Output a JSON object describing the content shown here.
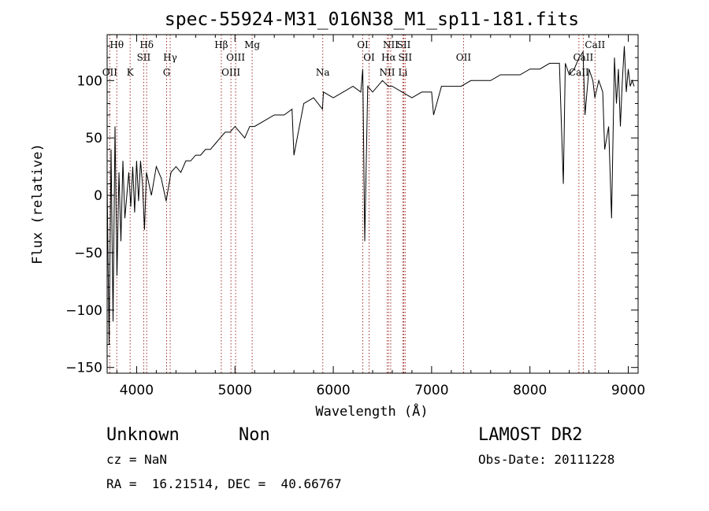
{
  "chart_data": {
    "type": "line",
    "title": "spec-55924-M31_016N38_M1_sp11-181.fits",
    "xlabel": "Wavelength (Å)",
    "ylabel": "Flux (relative)",
    "xlim": [
      3700,
      9100
    ],
    "ylim": [
      -155,
      140
    ],
    "x_ticks": [
      4000,
      5000,
      6000,
      7000,
      8000,
      9000
    ],
    "y_ticks": [
      -150,
      -100,
      -50,
      0,
      50,
      100
    ],
    "x_tick_labels": [
      "4000",
      "5000",
      "6000",
      "7000",
      "8000",
      "9000"
    ],
    "y_tick_labels": [
      "−150",
      "−100",
      "−50",
      "0",
      "50",
      "100"
    ],
    "grid": false,
    "series": [
      {
        "x": [
          3700,
          3720,
          3740,
          3760,
          3780,
          3800,
          3820,
          3840,
          3860,
          3880,
          3900,
          3920,
          3940,
          3960,
          3980,
          4000,
          4020,
          4040,
          4060,
          4080,
          4100,
          4150,
          4200,
          4250,
          4300,
          4350,
          4400,
          4450,
          4500,
          4550,
          4600,
          4650,
          4700,
          4750,
          4800,
          4850,
          4900,
          4950,
          5000,
          5050,
          5100,
          5150,
          5200,
          5300,
          5400,
          5500,
          5580,
          5600,
          5700,
          5800,
          5890,
          5900,
          6000,
          6100,
          6200,
          6280,
          6300,
          6320,
          6350,
          6400,
          6500,
          6560,
          6600,
          6700,
          6800,
          6900,
          7000,
          7020,
          7100,
          7200,
          7300,
          7400,
          7500,
          7600,
          7700,
          7800,
          7900,
          8000,
          8100,
          8200,
          8300,
          8340,
          8360,
          8400,
          8450,
          8500,
          8540,
          8560,
          8600,
          8640,
          8660,
          8700,
          8740,
          8760,
          8800,
          8830,
          8860,
          8880,
          8900,
          8920,
          8940,
          8960,
          8980,
          9000,
          9020,
          9040,
          9060
        ],
        "y": [
          10,
          -130,
          40,
          -110,
          60,
          -70,
          20,
          -40,
          30,
          -20,
          0,
          20,
          -10,
          25,
          -15,
          30,
          -5,
          30,
          10,
          -30,
          20,
          0,
          25,
          15,
          -5,
          20,
          25,
          20,
          30,
          30,
          35,
          35,
          40,
          40,
          45,
          50,
          55,
          55,
          60,
          55,
          50,
          60,
          60,
          65,
          70,
          70,
          75,
          35,
          80,
          85,
          75,
          90,
          85,
          90,
          95,
          90,
          110,
          -40,
          95,
          90,
          100,
          95,
          95,
          90,
          85,
          90,
          90,
          70,
          95,
          95,
          95,
          100,
          100,
          100,
          105,
          105,
          105,
          110,
          110,
          115,
          115,
          10,
          115,
          105,
          110,
          120,
          125,
          70,
          110,
          100,
          85,
          100,
          90,
          40,
          60,
          -20,
          120,
          80,
          110,
          60,
          100,
          130,
          90,
          110,
          95,
          100,
          95
        ]
      }
    ],
    "lines": [
      {
        "label": "Hθ",
        "x": 3798,
        "row": 1
      },
      {
        "label": "OII",
        "x": 3727,
        "row": 3
      },
      {
        "label": "K",
        "x": 3934,
        "row": 3
      },
      {
        "label": "Hδ",
        "x": 4102,
        "row": 1
      },
      {
        "label": "SII",
        "x": 4072,
        "row": 2
      },
      {
        "label": "Hγ",
        "x": 4341,
        "row": 2
      },
      {
        "label": "G",
        "x": 4305,
        "row": 3
      },
      {
        "label": "Hβ",
        "x": 4861,
        "row": 1
      },
      {
        "label": "OIII",
        "x": 5007,
        "row": 2
      },
      {
        "label": "OIII",
        "x": 4959,
        "row": 3
      },
      {
        "label": "Mg",
        "x": 5175,
        "row": 1
      },
      {
        "label": "Na",
        "x": 5893,
        "row": 3
      },
      {
        "label": "OI",
        "x": 6300,
        "row": 1
      },
      {
        "label": "OI",
        "x": 6364,
        "row": 2
      },
      {
        "label": "NII",
        "x": 6584,
        "row": 1
      },
      {
        "label": "Hα",
        "x": 6563,
        "row": 2
      },
      {
        "label": "NII",
        "x": 6548,
        "row": 3
      },
      {
        "label": "SII",
        "x": 6717,
        "row": 1
      },
      {
        "label": "SII",
        "x": 6731,
        "row": 2
      },
      {
        "label": "Li",
        "x": 6708,
        "row": 3
      },
      {
        "label": "OII",
        "x": 7325,
        "row": 2
      },
      {
        "label": "CaII",
        "x": 8662,
        "row": 1
      },
      {
        "label": "CaII",
        "x": 8542,
        "row": 2
      },
      {
        "label": "CaII",
        "x": 8498,
        "row": 3
      }
    ]
  },
  "info": {
    "class_label": "Unknown",
    "subclass_label": "Non",
    "survey": "LAMOST DR2",
    "cz_text": "cz = NaN",
    "obs_date_text": "Obs-Date: 20111228",
    "coords_text": "RA =  16.21514, DEC =  40.66767"
  }
}
